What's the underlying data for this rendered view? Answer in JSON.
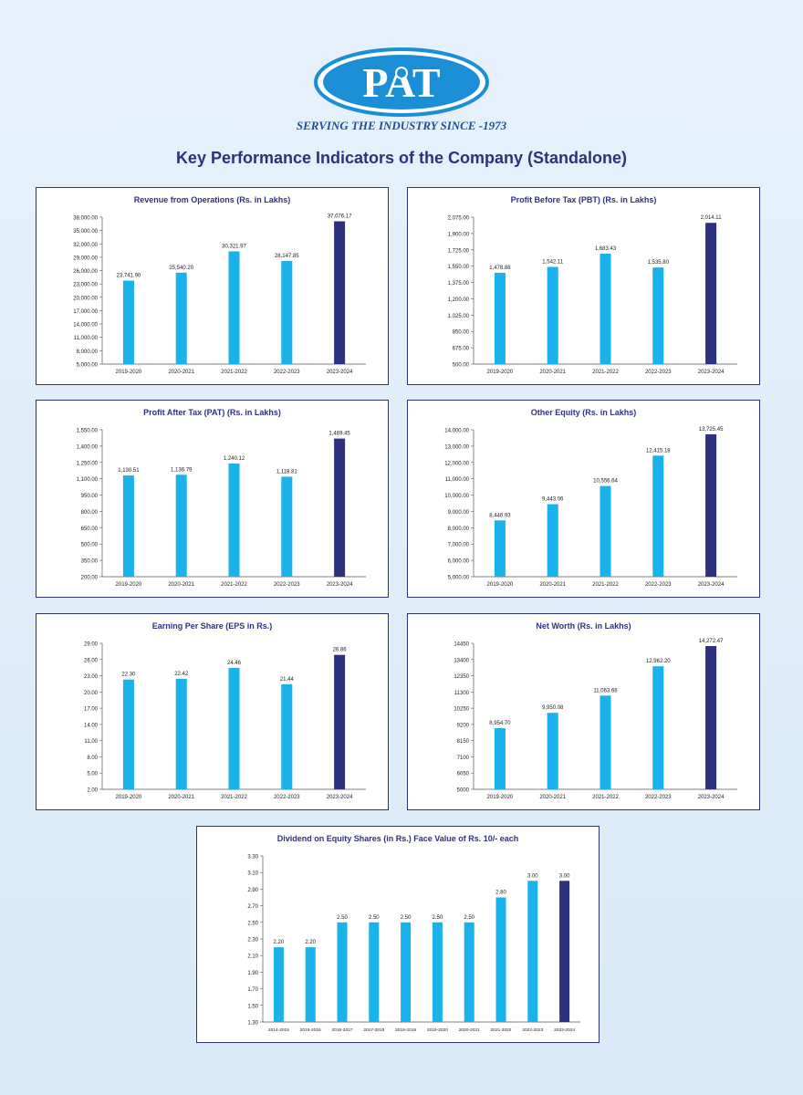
{
  "logo": {
    "brand": "PAT",
    "tagline": "SERVING THE INDUSTRY SINCE -1973"
  },
  "page_title": "Key Performance Indicators of the Company (Standalone)",
  "colors": {
    "bar": "#1ab2ea",
    "bar_highlight": "#2e3080",
    "title": "#2e3080",
    "border": "#2e3080",
    "logo_blue": "#1a8fd6"
  },
  "chart_data": [
    {
      "type": "bar",
      "title": "Revenue from Operations (Rs. in Lakhs)",
      "categories": [
        "2019-2020",
        "2020-2021",
        "2021-2022",
        "2022-2023",
        "2023-2024"
      ],
      "values": [
        23741.9,
        25540.2,
        30321.97,
        28147.85,
        37076.17
      ],
      "value_labels": [
        "23,741.90",
        "25,540.20",
        "30,321.97",
        "28,147.85",
        "37,076.17"
      ],
      "yticks": [
        "5,000.00",
        "8,000.00",
        "11,000.00",
        "14,000.00",
        "17,000.00",
        "20,000.00",
        "23,000.00",
        "26,000.00",
        "29,000.00",
        "32,000.00",
        "35,000.00",
        "38,000.00"
      ],
      "ylim": [
        5000,
        38000
      ],
      "highlight_last": true
    },
    {
      "type": "bar",
      "title": "Profit Before Tax (PBT) (Rs. in Lakhs)",
      "categories": [
        "2019-2020",
        "2020-2021",
        "2021-2022",
        "2022-2023",
        "2023-2024"
      ],
      "values": [
        1478.88,
        1542.11,
        1683.43,
        1535.8,
        2014.11
      ],
      "value_labels": [
        "1,478.88",
        "1,542.11",
        "1,683.43",
        "1,535.80",
        "2,014.11"
      ],
      "yticks": [
        "500.00",
        "675.00",
        "850.00",
        "1,025.00",
        "1,200.00",
        "1,375.00",
        "1,550.00",
        "1,725.00",
        "1,900.00",
        "2,075.00"
      ],
      "ylim": [
        500,
        2075
      ],
      "highlight_last": true
    },
    {
      "type": "bar",
      "title": "Profit After Tax (PAT) (Rs. in Lakhs)",
      "categories": [
        "2019-2020",
        "2020-2021",
        "2021-2022",
        "2022-2023",
        "2023-2024"
      ],
      "values": [
        1130.51,
        1136.79,
        1240.12,
        1118.81,
        1469.45
      ],
      "value_labels": [
        "1,130.51",
        "1,136.79",
        "1,240.12",
        "1,118.81",
        "1,469.45"
      ],
      "yticks": [
        "200.00",
        "350.00",
        "500.00",
        "650.00",
        "800.00",
        "950.00",
        "1,100.00",
        "1,250.00",
        "1,400.00",
        "1,550.00"
      ],
      "ylim": [
        200,
        1550
      ],
      "highlight_last": true
    },
    {
      "type": "bar",
      "title": "Other Equity (Rs. in Lakhs)",
      "categories": [
        "2019-2020",
        "2020-2021",
        "2021-2022",
        "2022-2023",
        "2023-2024"
      ],
      "values": [
        8446.93,
        9443.06,
        10556.64,
        12415.18,
        13725.45
      ],
      "value_labels": [
        "8,446.93",
        "9,443.06",
        "10,556.64",
        "12,415.18",
        "13,725.45"
      ],
      "yticks": [
        "5,000.00",
        "6,000.00",
        "7,000.00",
        "8,000.00",
        "9,000.00",
        "10,000.00",
        "11,000.00",
        "12,000.00",
        "13,000.00",
        "14,000.00"
      ],
      "ylim": [
        5000,
        14000
      ],
      "highlight_last": true
    },
    {
      "type": "bar",
      "title": "Earning Per Share (EPS in Rs.)",
      "categories": [
        "2019-2020",
        "2020-2021",
        "2021-2022",
        "2022-2023",
        "2023-2024"
      ],
      "values": [
        22.3,
        22.42,
        24.46,
        21.44,
        26.86
      ],
      "value_labels": [
        "22.30",
        "22.42",
        "24.46",
        "21.44",
        "26.86"
      ],
      "yticks": [
        "2.00",
        "5.00",
        "8.00",
        "11.00",
        "14.00",
        "17.00",
        "20.00",
        "23.00",
        "26.00",
        "29.00"
      ],
      "ylim": [
        2,
        29
      ],
      "highlight_last": true
    },
    {
      "type": "bar",
      "title": "Net Worth (Rs. in Lakhs)",
      "categories": [
        "2019-2020",
        "2020-2021",
        "2021-2022",
        "2022-2023",
        "2023-2024"
      ],
      "values": [
        8954.7,
        9950.08,
        11063.66,
        12962.2,
        14272.47
      ],
      "value_labels": [
        "8,954.70",
        "9,950.08",
        "11,063.66",
        "12,962.20",
        "14,272.47"
      ],
      "yticks": [
        "5000",
        "6050",
        "7100",
        "8150",
        "9200",
        "10250",
        "11300",
        "12350",
        "13400",
        "14450"
      ],
      "ylim": [
        5000,
        14450
      ],
      "highlight_last": true
    },
    {
      "type": "bar",
      "title": "Dividend on Equity Shares (in Rs.) Face Value of Rs. 10/- each",
      "categories": [
        "2014-2015",
        "2015-2016",
        "2016-2017",
        "2017-2018",
        "2018-2019",
        "2019-2020",
        "2020-2021",
        "2021-2022",
        "2022-2023",
        "2023-2024"
      ],
      "values": [
        2.2,
        2.2,
        2.5,
        2.5,
        2.5,
        2.5,
        2.5,
        2.8,
        3.0,
        3.0
      ],
      "value_labels": [
        "2.20",
        "2.20",
        "2.50",
        "2.50",
        "2.50",
        "2.50",
        "2.50",
        "2.80",
        "3.00",
        "3.00"
      ],
      "yticks": [
        "1.30",
        "1.50",
        "1.70",
        "1.90",
        "2.10",
        "2.30",
        "2.50",
        "2.70",
        "2.90",
        "3.10",
        "3.30"
      ],
      "ylim": [
        1.3,
        3.3
      ],
      "highlight_last": true
    }
  ]
}
